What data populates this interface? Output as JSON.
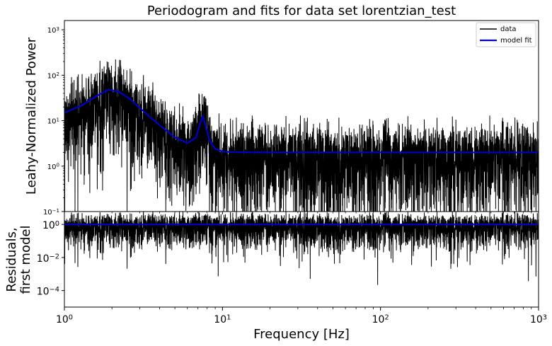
{
  "chart_data": [
    {
      "type": "line",
      "title": "Periodogram and fits for data set lorentzian_test",
      "ylabel": "Leahy-Normalized Power",
      "xscale": "log",
      "yscale": "log",
      "xlim": [
        1,
        1000
      ],
      "ylim": [
        0.1,
        1600
      ],
      "yticks": [
        {
          "value": 0.1,
          "base": "10",
          "exp": "−1"
        },
        {
          "value": 1,
          "base": "10",
          "exp": "0"
        },
        {
          "value": 10,
          "base": "10",
          "exp": "1"
        },
        {
          "value": 100,
          "base": "10",
          "exp": "2"
        },
        {
          "value": 1000,
          "base": "10",
          "exp": "3"
        }
      ],
      "legend": {
        "position": "top-right",
        "entries": [
          "data",
          "model fit"
        ]
      },
      "series": [
        {
          "name": "data",
          "color": "#000000",
          "style": "noisy periodogram, mean ≈ 2 at high frequency, spikes up to ≈ 170 near 1.8 Hz and ≈ 60 near 7.5 Hz"
        },
        {
          "name": "model fit",
          "color": "#0000cc",
          "x": [
            1,
            1.3,
            1.6,
            1.9,
            2.2,
            2.6,
            3,
            4,
            5,
            6,
            6.8,
            7.2,
            7.5,
            7.8,
            8.3,
            9,
            10,
            12,
            20,
            50,
            100,
            1000
          ],
          "y": [
            15,
            22,
            35,
            48,
            44,
            30,
            19,
            8,
            4.3,
            3.2,
            4.2,
            8.5,
            12.5,
            8,
            3.6,
            2.4,
            2.1,
            2.02,
            2,
            2,
            2,
            2
          ]
        }
      ]
    },
    {
      "type": "line",
      "ylabel_lines": [
        "Residuals,",
        "first model"
      ],
      "xlabel": "Frequency [Hz]",
      "xscale": "log",
      "yscale": "log",
      "xlim": [
        1,
        1000
      ],
      "ylim": [
        1e-05,
        6
      ],
      "xticks": [
        {
          "value": 1,
          "base": "10",
          "exp": "0"
        },
        {
          "value": 10,
          "base": "10",
          "exp": "1"
        },
        {
          "value": 100,
          "base": "10",
          "exp": "2"
        },
        {
          "value": 1000,
          "base": "10",
          "exp": "3"
        }
      ],
      "yticks": [
        {
          "value": 1,
          "base": "10",
          "exp": "0"
        },
        {
          "value": 0.01,
          "base": "10",
          "exp": "−2"
        },
        {
          "value": 0.0001,
          "base": "10",
          "exp": "−4"
        }
      ],
      "series": [
        {
          "name": "residuals",
          "color": "#000000",
          "style": "noisy, capped near 5, dips down to ≈ 1e-5"
        },
        {
          "name": "unity",
          "color": "#0000cc",
          "x": [
            1,
            1000
          ],
          "y": [
            1,
            1
          ]
        }
      ]
    }
  ]
}
